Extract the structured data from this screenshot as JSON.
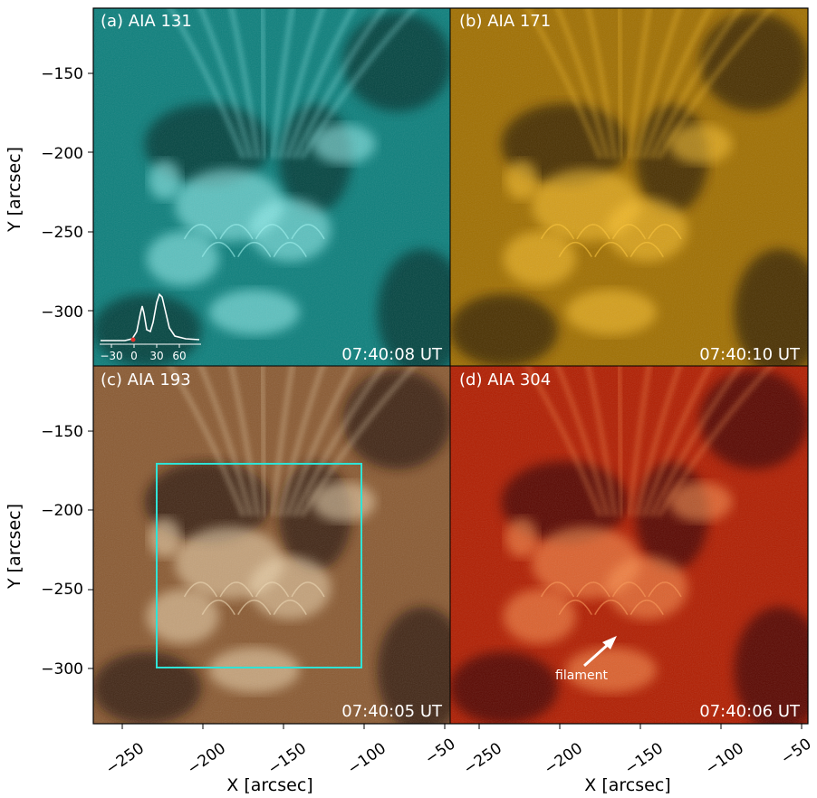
{
  "panels": [
    {
      "label": "(a) AIA 131",
      "time": "07:40:08 UT",
      "color_dark": "#00302f",
      "color_mid": "#0c7f7c",
      "color_bright": "#9ff6f4"
    },
    {
      "label": "(b) AIA 171",
      "time": "07:40:10 UT",
      "color_dark": "#2e1c00",
      "color_mid": "#a06f00",
      "color_bright": "#ffc633"
    },
    {
      "label": "(c) AIA 193",
      "time": "07:40:05 UT",
      "color_dark": "#2a1608",
      "color_mid": "#8a5a32",
      "color_bright": "#f2dcb6"
    },
    {
      "label": "(d) AIA 304",
      "time": "07:40:06 UT",
      "color_dark": "#3d0000",
      "color_mid": "#b11d00",
      "color_bright": "#ff9a55"
    }
  ],
  "axes": {
    "xlabel": "X [arcsec]",
    "ylabel": "Y [arcsec]",
    "x_ticks": [
      "−250",
      "−200",
      "−150",
      "−100",
      "−50"
    ],
    "y_ticks": [
      "−150",
      "−200",
      "−250",
      "−300"
    ]
  },
  "inset": {
    "x_ticks": [
      "−30",
      "0",
      "30",
      "60"
    ],
    "curve_color": "#ffffff",
    "marker_color": "#e0302a"
  },
  "box": {
    "color": "#2fe3d6"
  },
  "annotation": {
    "text": "filament"
  }
}
